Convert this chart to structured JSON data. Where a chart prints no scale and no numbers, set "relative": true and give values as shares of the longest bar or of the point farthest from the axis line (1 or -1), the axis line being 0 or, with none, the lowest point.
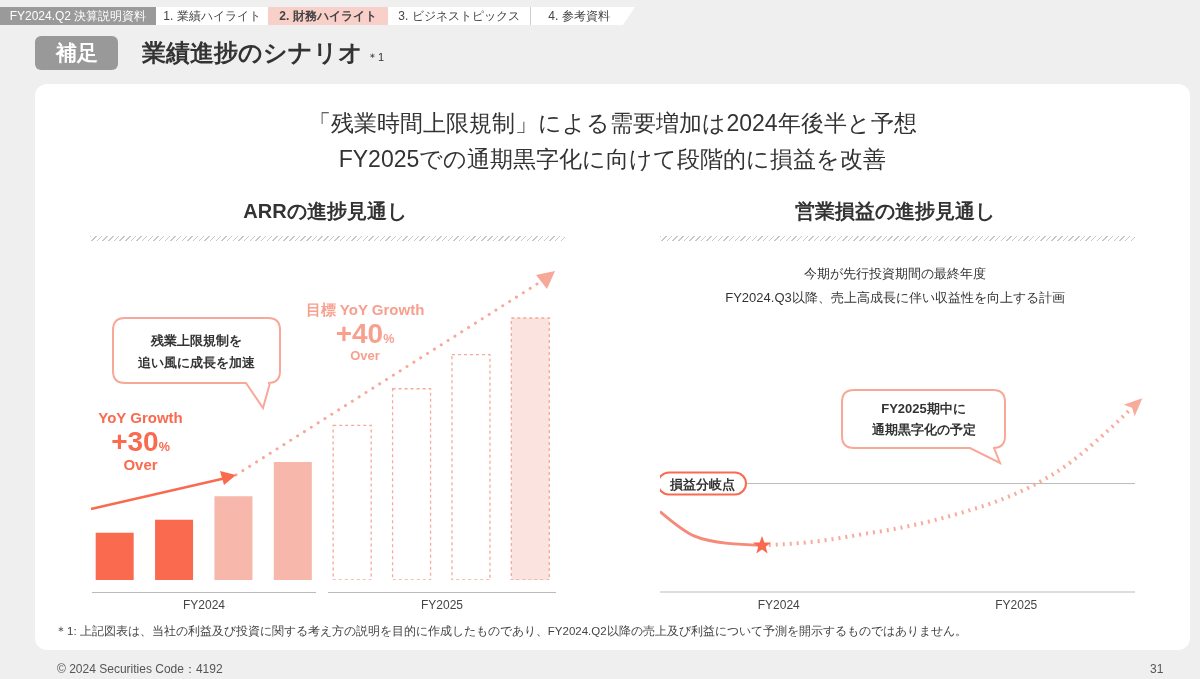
{
  "chart_data": [
    {
      "type": "other",
      "title": "業績進捗のシナリオ",
      "subtitle": "「残業時間上限規制」による需要増加は2024年後半と予想\nFY2025での通期黒字化に向けて段階的に損益を改善",
      "annotations": [
        "FY2024.Q2 決算説明資料",
        "1. 業績ハイライト",
        "2. 財務ハイライト",
        "3. ビジネストピックス",
        "4. 参考資料",
        "補足",
        "＊1",
        "＊1: 上記図表は、当社の利益及び投資に関する考え方の説明を目的に作成したものであり、FY2024.Q2以降の売上及び利益について予測を開示するものではありません。",
        "© 2024 Securities Code：4192",
        "31"
      ]
    },
    {
      "type": "bar",
      "title": "ARRの進捗見通し",
      "relative": true,
      "categories": [
        null,
        null,
        null,
        null,
        null,
        null,
        null,
        null
      ],
      "values": [
        0.18,
        0.23,
        0.32,
        0.45,
        0.59,
        0.73,
        0.86,
        1
      ],
      "colors": [
        "#f96a4f",
        "#f96a4f",
        "#f7b7ab",
        "#f7b7ab",
        "#ffffff",
        "#ffffff",
        "#ffffff",
        "#fbe3e0"
      ],
      "annotations": [
        "FY2024",
        "FY2025",
        "YoY Growth\n+30%\nOver",
        "目標 YoY Growth\n+40%\nOver",
        "残業上限規制を",
        "追い風に成長を加速"
      ]
    },
    {
      "type": "line",
      "title": "営業損益の進捗見通し",
      "subtitle": "今期が先行投資期間の最終年度\nFY2024.Q3以降、売上高成長に伴い収益性を向上する計画",
      "relative": true,
      "categories": [
        null,
        null,
        null,
        null,
        null,
        null,
        null,
        null,
        null,
        null,
        null,
        null,
        null,
        null,
        null
      ],
      "series": [
        {
          "color": "#f7897a",
          "line_style": "solid",
          "values": [
            0.43,
            0.3,
            0.26,
            0.25,
            null,
            null,
            null,
            null,
            null,
            null,
            null,
            null,
            null,
            null,
            null
          ]
        },
        {
          "color": "#f8aa9c",
          "line_style": "dotted",
          "values": [
            null,
            null,
            null,
            0.25,
            0.26,
            0.28,
            0.31,
            0.34,
            0.38,
            0.43,
            0.49,
            0.57,
            0.68,
            0.83,
            1
          ]
        }
      ],
      "ref_lines": [
        {
          "axis": "y",
          "value": 0.58,
          "label": "損益分岐点",
          "color": "#bbbbbb"
        }
      ],
      "annotations": [
        "FY2024",
        "FY2025",
        "FY2025期中に",
        "通期黒字化の予定"
      ]
    }
  ]
}
